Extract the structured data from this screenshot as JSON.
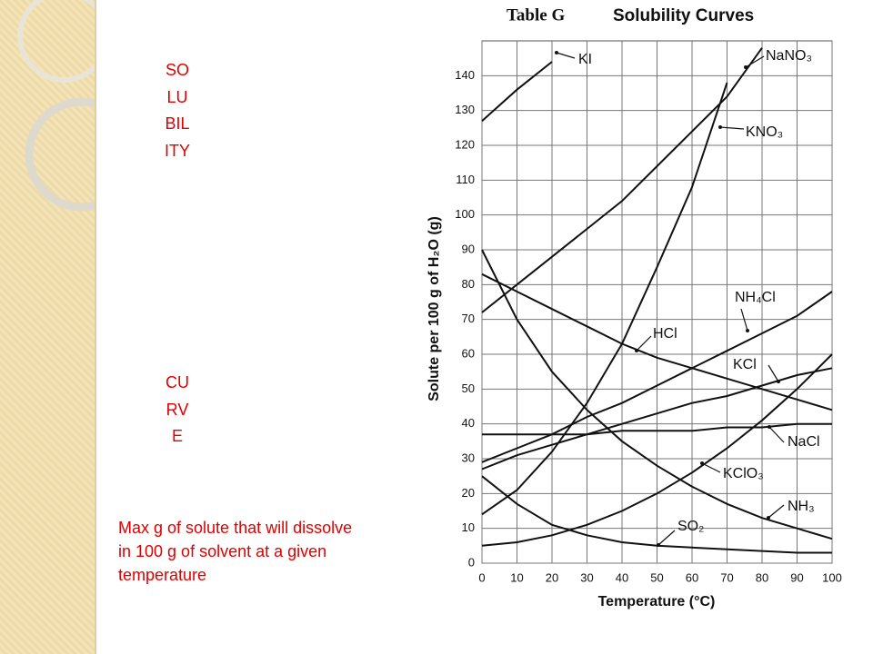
{
  "slide": {
    "side_title": [
      "SOLUBILITY",
      "CURVE"
    ],
    "description": "Max  g of solute that will dissolve in 100 g of solvent at a given temperature"
  },
  "chart_data": {
    "type": "line",
    "table_label": "Table G",
    "title": "Solubility Curves",
    "x_label": "Temperature (°C)",
    "y_label": "Solute per 100 g of H₂O (g)",
    "x": [
      0,
      10,
      20,
      30,
      40,
      50,
      60,
      70,
      80,
      90,
      100
    ],
    "xlim": [
      0,
      100
    ],
    "xticks": [
      0,
      10,
      20,
      30,
      40,
      50,
      60,
      70,
      80,
      90,
      100
    ],
    "ylim": [
      0,
      150
    ],
    "yticks": [
      0,
      10,
      20,
      30,
      40,
      50,
      60,
      70,
      80,
      90,
      100,
      110,
      120,
      130,
      140
    ],
    "grid": true,
    "series": [
      {
        "name": "KI",
        "color": "#111111",
        "values": [
          127,
          136,
          144,
          null,
          null,
          null,
          null,
          null,
          null,
          null,
          null
        ]
      },
      {
        "name": "NaNO₃",
        "color": "#111111",
        "values": [
          72,
          80,
          88,
          96,
          104,
          114,
          124,
          134,
          148,
          null,
          null
        ]
      },
      {
        "name": "KNO₃",
        "color": "#111111",
        "values": [
          14,
          21,
          32,
          46,
          63,
          85,
          108,
          138,
          null,
          null,
          null
        ]
      },
      {
        "name": "NH₄Cl",
        "color": "#111111",
        "values": [
          29,
          33,
          37,
          42,
          46,
          51,
          56,
          61,
          66,
          71,
          78
        ]
      },
      {
        "name": "HCl",
        "color": "#111111",
        "values": [
          83,
          78,
          73,
          68,
          63,
          59,
          56,
          53,
          50,
          47,
          44
        ]
      },
      {
        "name": "KCl",
        "color": "#111111",
        "values": [
          27,
          31,
          34,
          37,
          40,
          43,
          46,
          48,
          51,
          54,
          56
        ]
      },
      {
        "name": "NaCl",
        "color": "#111111",
        "values": [
          37,
          37,
          37,
          37,
          38,
          38,
          38,
          39,
          39,
          40,
          40
        ]
      },
      {
        "name": "KClO₃",
        "color": "#111111",
        "values": [
          5,
          6,
          8,
          11,
          15,
          20,
          26,
          33,
          41,
          50,
          60
        ]
      },
      {
        "name": "NH₃",
        "color": "#111111",
        "values": [
          90,
          70,
          55,
          44,
          35,
          28,
          22,
          17,
          13,
          10,
          7
        ]
      },
      {
        "name": "SO₂",
        "color": "#111111",
        "values": [
          25,
          17,
          11,
          8,
          6,
          5,
          4.5,
          4,
          3.5,
          3,
          3
        ]
      }
    ]
  }
}
